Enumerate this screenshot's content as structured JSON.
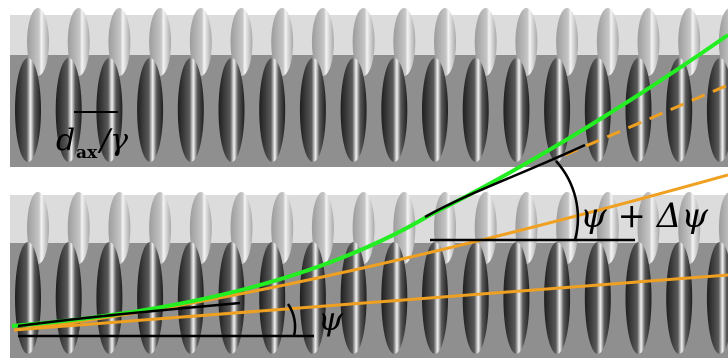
{
  "labels": {
    "spacing_d": "d",
    "spacing_sub": "ax",
    "spacing_over": "/γ",
    "angle_small": "ψ",
    "angle_large": "ψ + Δψ"
  },
  "colors": {
    "background": "#ffffff",
    "strip_light": "#d9d9d9",
    "strip_dark": "#8f8f8f",
    "ellipse_dark": "#3c3c3c",
    "ellipse_mid": "#777777",
    "ellipse_light": "#b4b4b4",
    "green_path": "#22ee22",
    "orange_path": "#f0a020",
    "black_line": "#000000"
  }
}
